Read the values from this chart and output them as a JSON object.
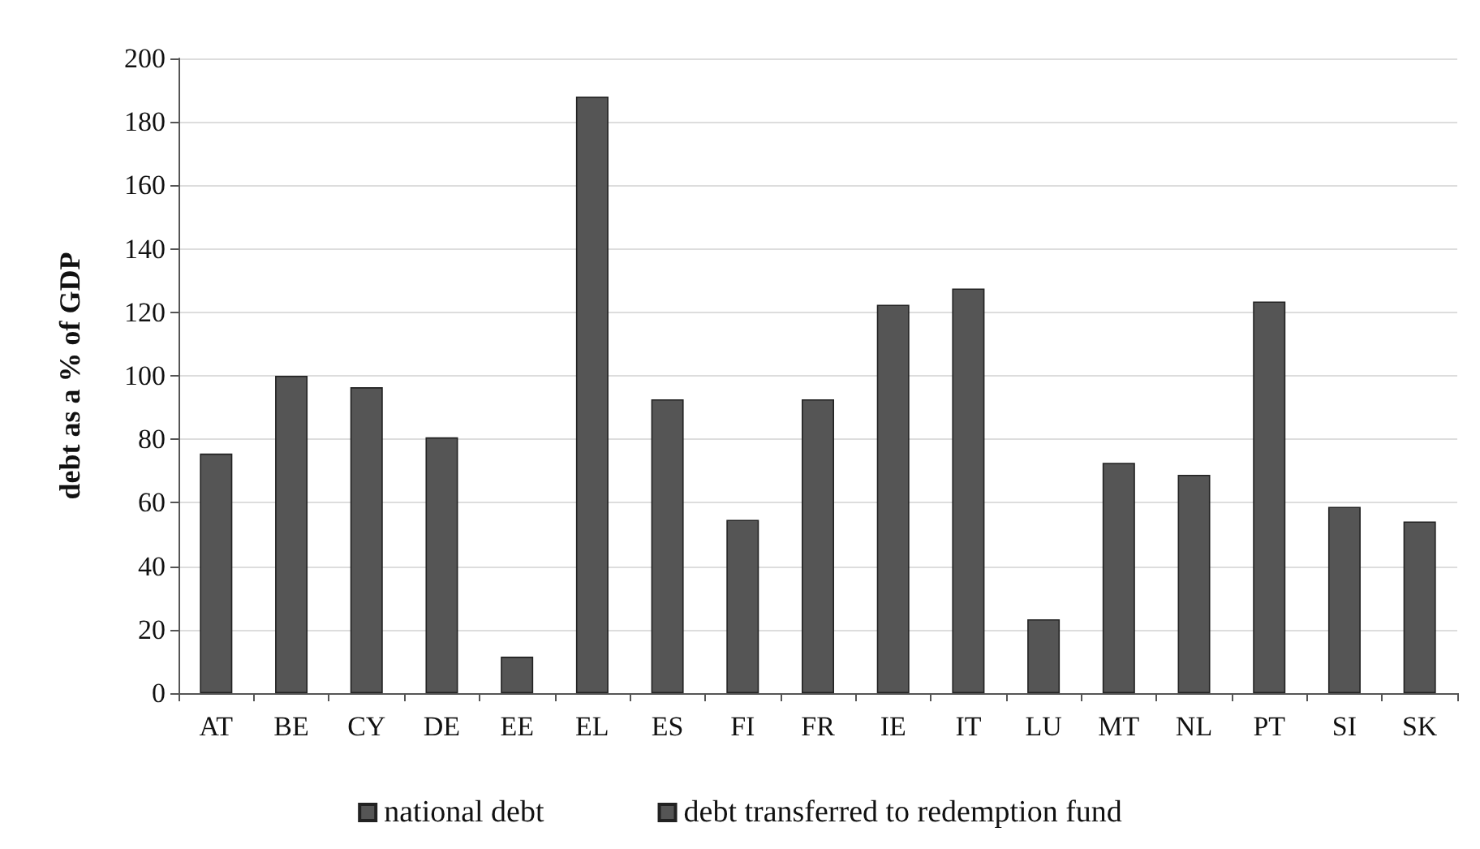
{
  "chart_data": {
    "type": "bar",
    "ylabel": "debt as a % of GDP",
    "categories": [
      "AT",
      "BE",
      "CY",
      "DE",
      "EE",
      "EL",
      "ES",
      "FI",
      "FR",
      "IE",
      "IT",
      "LU",
      "MT",
      "NL",
      "PT",
      "SI",
      "SK"
    ],
    "series": [
      {
        "name": "national debt",
        "color": "#555555",
        "values": [
          75.5,
          100,
          96.4,
          80.6,
          11.5,
          188,
          92.6,
          54.6,
          92.6,
          122.4,
          127.5,
          23.3,
          72.6,
          68.8,
          123.4,
          58.7,
          54.1
        ]
      },
      {
        "name": "debt transferred to redemption fund",
        "color": "#555555",
        "values": [
          null,
          null,
          null,
          null,
          null,
          null,
          null,
          null,
          null,
          null,
          null,
          null,
          null,
          null,
          null,
          null,
          null
        ]
      }
    ],
    "ylim": [
      0,
      200
    ],
    "yticks": [
      0,
      20,
      40,
      60,
      80,
      100,
      120,
      140,
      160,
      180,
      200
    ],
    "grid": "y",
    "legend": "bottom"
  }
}
